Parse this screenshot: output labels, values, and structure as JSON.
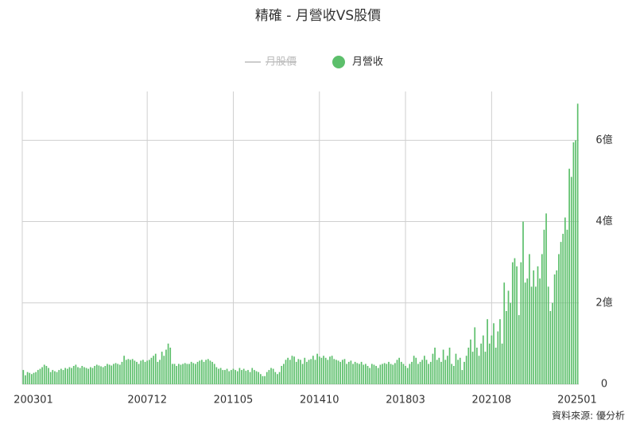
{
  "chart_data": {
    "type": "bar",
    "title": "精確 - 月營收VS股價",
    "source": "資料來源: 優分析",
    "series": [
      {
        "name": "月股價",
        "color": "#cccccc",
        "visible": false
      },
      {
        "name": "月營收",
        "color": "#5cbf6b",
        "visible": true,
        "values": [
          0.35,
          0.22,
          0.3,
          0.28,
          0.25,
          0.28,
          0.3,
          0.35,
          0.38,
          0.42,
          0.48,
          0.45,
          0.4,
          0.3,
          0.35,
          0.32,
          0.3,
          0.35,
          0.38,
          0.35,
          0.4,
          0.38,
          0.42,
          0.4,
          0.45,
          0.48,
          0.42,
          0.4,
          0.45,
          0.42,
          0.4,
          0.38,
          0.42,
          0.4,
          0.45,
          0.48,
          0.46,
          0.44,
          0.42,
          0.45,
          0.5,
          0.48,
          0.46,
          0.5,
          0.52,
          0.5,
          0.48,
          0.55,
          0.7,
          0.6,
          0.62,
          0.6,
          0.62,
          0.58,
          0.55,
          0.5,
          0.58,
          0.6,
          0.55,
          0.58,
          0.6,
          0.65,
          0.7,
          0.75,
          0.55,
          0.6,
          0.8,
          0.7,
          0.85,
          1.0,
          0.9,
          0.5,
          0.5,
          0.45,
          0.5,
          0.48,
          0.5,
          0.52,
          0.5,
          0.5,
          0.55,
          0.52,
          0.5,
          0.55,
          0.58,
          0.6,
          0.55,
          0.6,
          0.62,
          0.58,
          0.55,
          0.5,
          0.42,
          0.38,
          0.4,
          0.35,
          0.35,
          0.38,
          0.32,
          0.35,
          0.38,
          0.35,
          0.32,
          0.4,
          0.35,
          0.38,
          0.33,
          0.35,
          0.3,
          0.4,
          0.35,
          0.32,
          0.3,
          0.25,
          0.2,
          0.2,
          0.3,
          0.35,
          0.4,
          0.38,
          0.3,
          0.25,
          0.3,
          0.45,
          0.5,
          0.6,
          0.65,
          0.6,
          0.7,
          0.68,
          0.55,
          0.62,
          0.6,
          0.5,
          0.65,
          0.55,
          0.6,
          0.62,
          0.7,
          0.6,
          0.75,
          0.68,
          0.65,
          0.7,
          0.65,
          0.6,
          0.68,
          0.7,
          0.62,
          0.6,
          0.58,
          0.55,
          0.6,
          0.62,
          0.5,
          0.55,
          0.58,
          0.5,
          0.55,
          0.52,
          0.5,
          0.55,
          0.48,
          0.5,
          0.45,
          0.4,
          0.5,
          0.48,
          0.45,
          0.4,
          0.48,
          0.5,
          0.52,
          0.5,
          0.55,
          0.5,
          0.48,
          0.52,
          0.6,
          0.65,
          0.55,
          0.5,
          0.45,
          0.4,
          0.5,
          0.55,
          0.7,
          0.65,
          0.5,
          0.55,
          0.6,
          0.7,
          0.6,
          0.5,
          0.55,
          0.75,
          0.9,
          0.6,
          0.65,
          0.55,
          0.85,
          0.6,
          0.7,
          0.9,
          0.5,
          0.45,
          0.75,
          0.6,
          0.65,
          0.35,
          0.55,
          0.7,
          0.9,
          1.1,
          0.8,
          1.4,
          0.9,
          0.7,
          1.0,
          1.2,
          0.8,
          1.6,
          1.0,
          1.2,
          1.5,
          0.9,
          1.3,
          1.6,
          1.0,
          2.5,
          1.8,
          2.3,
          2.0,
          3.0,
          3.1,
          2.9,
          1.7,
          3.0,
          4.0,
          2.5,
          2.6,
          3.2,
          2.4,
          2.8,
          2.4,
          2.9,
          2.6,
          3.2,
          3.8,
          4.2,
          2.4,
          1.8,
          2.0,
          2.7,
          2.8,
          3.2,
          3.5,
          3.7,
          4.1,
          3.8,
          5.3,
          5.1,
          5.95,
          6.0,
          6.9
        ]
      }
    ],
    "categories": [
      "200301",
      null,
      null,
      null,
      null,
      null,
      null,
      null,
      null,
      null,
      null,
      null,
      null,
      null,
      null,
      null,
      null,
      null,
      null,
      null,
      null,
      null,
      null,
      null,
      null,
      null,
      null,
      null,
      null,
      null,
      null,
      null,
      null,
      null,
      null,
      null,
      null,
      null,
      null,
      null,
      null,
      null,
      null,
      null,
      null,
      null,
      null,
      null,
      null,
      null,
      null,
      null,
      null,
      null,
      null,
      null,
      null,
      null,
      null,
      "200712",
      null,
      null,
      null,
      null,
      null,
      null,
      null,
      null,
      null,
      null,
      null,
      null,
      null,
      null,
      null,
      null,
      null,
      null,
      null,
      null,
      null,
      null,
      null,
      null,
      null,
      null,
      null,
      null,
      null,
      null,
      null,
      null,
      null,
      null,
      null,
      null,
      null,
      null,
      null,
      null,
      "201105",
      null,
      null,
      null,
      null,
      null,
      null,
      null,
      null,
      null,
      null,
      null,
      null,
      null,
      null,
      null,
      null,
      null,
      null,
      null,
      null,
      null,
      null,
      null,
      null,
      null,
      null,
      null,
      null,
      null,
      null,
      null,
      null,
      null,
      null,
      null,
      null,
      null,
      null,
      null,
      null,
      "201410",
      null,
      null,
      null,
      null,
      null,
      null,
      null,
      null,
      null,
      null,
      null,
      null,
      null,
      null,
      null,
      null,
      null,
      null,
      null,
      null,
      null,
      null,
      null,
      null,
      null,
      null,
      null,
      null,
      null,
      null,
      null,
      null,
      null,
      null,
      null,
      null,
      null,
      null,
      null,
      null,
      "201803",
      null,
      null,
      null,
      null,
      null,
      null,
      null,
      null,
      null,
      null,
      null,
      null,
      null,
      null,
      null,
      null,
      null,
      null,
      null,
      null,
      null,
      null,
      null,
      null,
      null,
      null,
      null,
      null,
      null,
      null,
      null,
      null,
      null,
      null,
      null,
      null,
      null,
      null,
      null,
      null,
      "202108",
      null,
      null,
      null,
      null,
      null,
      null,
      null,
      null,
      null,
      null,
      null,
      null,
      null,
      null,
      null,
      null,
      null,
      null,
      null,
      null,
      null,
      null,
      null,
      null,
      null,
      null,
      null,
      null,
      null,
      null,
      null,
      null,
      null,
      null,
      null,
      null,
      null,
      null,
      null,
      null,
      "202501"
    ],
    "ylim": [
      0,
      7.2
    ],
    "yticks": [
      0,
      {
        "value": 2,
        "label": "2億"
      },
      {
        "value": 4,
        "label": "4億"
      },
      {
        "value": 6,
        "label": "6億"
      }
    ],
    "grid": true
  }
}
